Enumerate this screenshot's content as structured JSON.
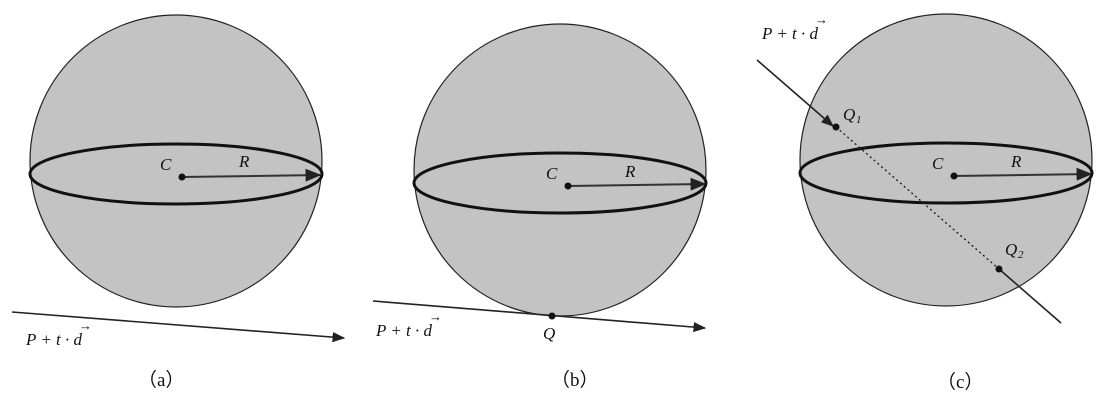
{
  "panels": [
    {
      "caption": "（a）",
      "center_label": "C",
      "radius_label": "R",
      "ray_label": "P + t · d",
      "vector_symbol": "→"
    },
    {
      "caption": "（b）",
      "center_label": "C",
      "radius_label": "R",
      "ray_label": "P + t · d",
      "vector_symbol": "→",
      "point_label": "Q"
    },
    {
      "caption": "（c）",
      "center_label": "C",
      "radius_label": "R",
      "ray_label": "P + t · d",
      "vector_symbol": "→",
      "point1_label": "Q",
      "point1_sub": "1",
      "point2_label": "Q",
      "point2_sub": "2"
    }
  ],
  "colors": {
    "sphere_fill": "#c3c3c3",
    "stroke": "#111111"
  }
}
